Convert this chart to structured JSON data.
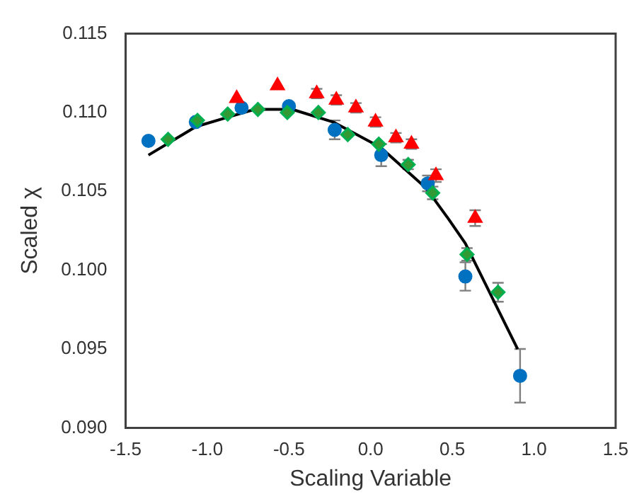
{
  "chart_data": {
    "type": "scatter",
    "xlabel": "Scaling Variable",
    "ylabel": "Scaled χ",
    "xlim": [
      -1.5,
      1.5
    ],
    "xticks": [
      -1.5,
      {
        "value": -1,
        "label": "-1.0"
      },
      -0.5,
      {
        "value": 0,
        "label": "0.0"
      },
      0.5,
      {
        "value": 1,
        "label": "1.0"
      },
      1.5
    ],
    "ylim": [
      0.09,
      0.115
    ],
    "yticks": [
      {
        "value": 0.09,
        "label": "0.090"
      },
      0.095,
      {
        "value": 0.1,
        "label": "0.100"
      },
      0.105,
      {
        "value": 0.11,
        "label": "0.110"
      },
      0.115
    ],
    "grid": false,
    "legend": false,
    "series": [
      {
        "type": "line",
        "color": "#000000",
        "marker": "none",
        "line_style": "solid",
        "x": [
          -1.36,
          -1.07,
          -0.875,
          -0.71,
          -0.48,
          -0.23,
          0.06,
          0.34,
          0.48,
          0.58,
          0.9
        ],
        "values": [
          0.1073,
          0.1091,
          0.1097,
          0.1102,
          0.1102,
          0.1094,
          0.1078,
          0.1052,
          0.1032,
          0.1017,
          0.095
        ]
      },
      {
        "type": "scatter",
        "color": "#0070c0",
        "marker": "circle",
        "x": [
          -1.36,
          -1.07,
          -0.79,
          -0.5,
          -0.22,
          0.065,
          0.35,
          0.58,
          0.915
        ],
        "values": [
          0.1082,
          0.1094,
          0.1103,
          0.1104,
          0.1089,
          0.1073,
          0.1055,
          0.0996,
          0.0933
        ],
        "errors": [
          null,
          null,
          null,
          null,
          0.0006,
          0.0007,
          0.0005,
          0.0009,
          0.0017
        ]
      },
      {
        "type": "scatter",
        "color": "#ff0000",
        "marker": "triangle",
        "x": [
          -0.82,
          -0.57,
          -0.33,
          -0.21,
          -0.09,
          0.03,
          0.155,
          0.25,
          0.4,
          0.64
        ],
        "values": [
          0.1109,
          0.1117,
          0.1112,
          0.1108,
          0.1103,
          0.1094,
          0.1084,
          0.108,
          0.106,
          0.1033
        ],
        "errors": [
          null,
          null,
          0.0003,
          0.0003,
          0.0003,
          0.0003,
          0.0003,
          0.0003,
          0.0004,
          0.0005
        ]
      },
      {
        "type": "scatter",
        "color": "#339933",
        "marker": "diamond",
        "x": [
          -1.24,
          -1.06,
          -0.875,
          -0.69,
          -0.51,
          -0.32,
          -0.14,
          0.05,
          0.23,
          0.38,
          0.59,
          0.78
        ],
        "values": [
          0.1083,
          0.1095,
          0.1099,
          0.1102,
          0.11,
          0.11,
          0.1086,
          0.108,
          0.1067,
          0.1049,
          0.101,
          0.0986
        ],
        "errors": [
          null,
          null,
          null,
          null,
          null,
          null,
          null,
          null,
          0.0003,
          0.0004,
          0.0004,
          0.0006
        ]
      }
    ]
  }
}
